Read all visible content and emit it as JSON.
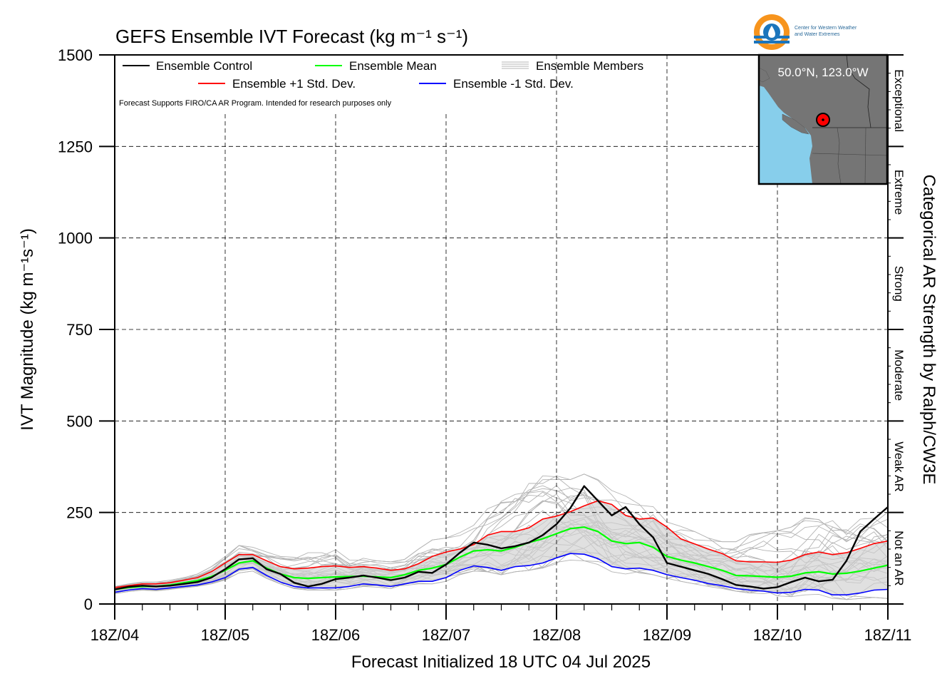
{
  "chart_data": {
    "type": "line",
    "title": "GEFS Ensemble IVT Forecast (kg m⁻¹ s⁻¹)",
    "xlabel": "Forecast Initialized 18 UTC 04 Jul 2025",
    "ylabel": "IVT Magnitude (kg m⁻¹s⁻¹)",
    "ylabel_right": "Categorical AR Strength by Ralph/CW3E",
    "ylim": [
      0,
      1500
    ],
    "yticks": [
      0,
      250,
      500,
      750,
      1000,
      1250,
      1500
    ],
    "xlim": [
      0,
      168
    ],
    "xticks": [
      {
        "value": 0,
        "label": "18Z/04"
      },
      {
        "value": 24,
        "label": "18Z/05"
      },
      {
        "value": 48,
        "label": "18Z/06"
      },
      {
        "value": 72,
        "label": "18Z/07"
      },
      {
        "value": 96,
        "label": "18Z/08"
      },
      {
        "value": 120,
        "label": "18Z/09"
      },
      {
        "value": 144,
        "label": "18Z/10"
      },
      {
        "value": 168,
        "label": "18Z/11"
      }
    ],
    "grid": true,
    "legend_placement": "top-left",
    "note": "Forecast Supports FIRO/CA AR Program. Intended for research purposes only",
    "categories": [
      {
        "label": "Not an AR",
        "from": 0,
        "to": 250
      },
      {
        "label": "Weak AR",
        "from": 250,
        "to": 500
      },
      {
        "label": "Moderate",
        "from": 500,
        "to": 750
      },
      {
        "label": "Strong",
        "from": 750,
        "to": 1000
      },
      {
        "label": "Extreme",
        "from": 1000,
        "to": 1250
      },
      {
        "label": "Exceptional",
        "from": 1250,
        "to": 1500
      }
    ],
    "x": [
      0,
      3,
      6,
      9,
      12,
      15,
      18,
      21,
      24,
      27,
      30,
      33,
      36,
      39,
      42,
      45,
      48,
      51,
      54,
      57,
      60,
      63,
      66,
      69,
      72,
      75,
      78,
      81,
      84,
      87,
      90,
      93,
      96,
      99,
      102,
      105,
      108,
      111,
      114,
      117,
      120,
      123,
      126,
      129,
      132,
      135,
      138,
      141,
      144,
      147,
      150,
      153,
      156,
      159,
      162,
      165,
      168
    ],
    "series": [
      {
        "name": "Ensemble Control",
        "color": "#000000",
        "values": [
          40,
          47,
          50,
          48,
          50,
          55,
          60,
          72,
          95,
          122,
          125,
          95,
          82,
          58,
          48,
          55,
          68,
          72,
          78,
          72,
          65,
          72,
          88,
          85,
          108,
          140,
          168,
          162,
          152,
          158,
          168,
          188,
          218,
          262,
          322,
          282,
          242,
          265,
          218,
          182,
          112,
          102,
          92,
          82,
          68,
          52,
          48,
          42,
          46,
          60,
          72,
          62,
          66,
          118,
          198,
          232,
          265
        ]
      },
      {
        "name": "Ensemble Mean",
        "color": "#00ff00",
        "values": [
          40,
          45,
          48,
          48,
          52,
          58,
          64,
          75,
          92,
          112,
          118,
          98,
          82,
          72,
          70,
          72,
          74,
          75,
          76,
          74,
          72,
          80,
          92,
          98,
          108,
          128,
          145,
          148,
          145,
          155,
          168,
          178,
          192,
          206,
          210,
          198,
          172,
          165,
          168,
          155,
          130,
          120,
          112,
          102,
          92,
          78,
          77,
          75,
          73,
          76,
          85,
          88,
          82,
          84,
          90,
          98,
          106
        ]
      },
      {
        "name": "Ensemble +1 Std. Dev.",
        "color": "#ff0000",
        "values": [
          45,
          50,
          55,
          55,
          58,
          65,
          72,
          88,
          112,
          135,
          135,
          118,
          102,
          96,
          98,
          102,
          104,
          100,
          102,
          98,
          92,
          96,
          110,
          130,
          142,
          150,
          162,
          188,
          198,
          198,
          208,
          232,
          240,
          252,
          268,
          282,
          272,
          242,
          232,
          235,
          210,
          178,
          164,
          150,
          138,
          118,
          115,
          115,
          114,
          120,
          135,
          142,
          135,
          140,
          152,
          165,
          172
        ]
      },
      {
        "name": "Ensemble -1 Std. Dev.",
        "color": "#0000ff",
        "values": [
          32,
          38,
          42,
          40,
          44,
          48,
          52,
          60,
          72,
          95,
          100,
          78,
          60,
          48,
          44,
          44,
          44,
          48,
          55,
          52,
          48,
          55,
          62,
          62,
          72,
          92,
          104,
          100,
          92,
          102,
          105,
          112,
          126,
          138,
          136,
          124,
          102,
          96,
          98,
          92,
          80,
          72,
          65,
          56,
          50,
          42,
          38,
          35,
          30,
          32,
          40,
          38,
          25,
          25,
          30,
          38,
          40
        ]
      }
    ],
    "ensemble_members": {
      "name": "Ensemble Members",
      "color": "#b4b4b4",
      "count": 30,
      "range_by_x": {
        "low": [
          28,
          34,
          38,
          36,
          40,
          44,
          48,
          55,
          65,
          85,
          90,
          70,
          55,
          42,
          38,
          38,
          38,
          42,
          48,
          46,
          42,
          48,
          55,
          55,
          62,
          80,
          90,
          88,
          80,
          88,
          92,
          98,
          110,
          120,
          118,
          108,
          88,
          82,
          85,
          80,
          70,
          62,
          55,
          48,
          42,
          35,
          30,
          28,
          22,
          20,
          25,
          22,
          15,
          12,
          15,
          18,
          15
        ],
        "high": [
          48,
          55,
          60,
          60,
          65,
          72,
          82,
          102,
          130,
          160,
          155,
          142,
          135,
          135,
          140,
          145,
          148,
          120,
          125,
          118,
          115,
          122,
          150,
          175,
          180,
          195,
          215,
          260,
          290,
          305,
          335,
          350,
          350,
          340,
          355,
          340,
          310,
          295,
          285,
          270,
          230,
          212,
          198,
          180,
          170,
          170,
          190,
          195,
          200,
          210,
          240,
          240,
          235,
          225,
          240,
          250,
          255
        ]
      }
    },
    "inset_map": {
      "label": "50.0°N, 123.0°W",
      "point_lat": 50.0,
      "point_lon": -123.0,
      "land_color": "#757575",
      "water_color": "#87ceeb",
      "marker_color": "#ff0000"
    },
    "logo": {
      "text_line1": "Center for Western Weather",
      "text_line2": "and Water Extremes",
      "ring_color": "#f7941d",
      "drop_color": "#1c75bc"
    }
  }
}
